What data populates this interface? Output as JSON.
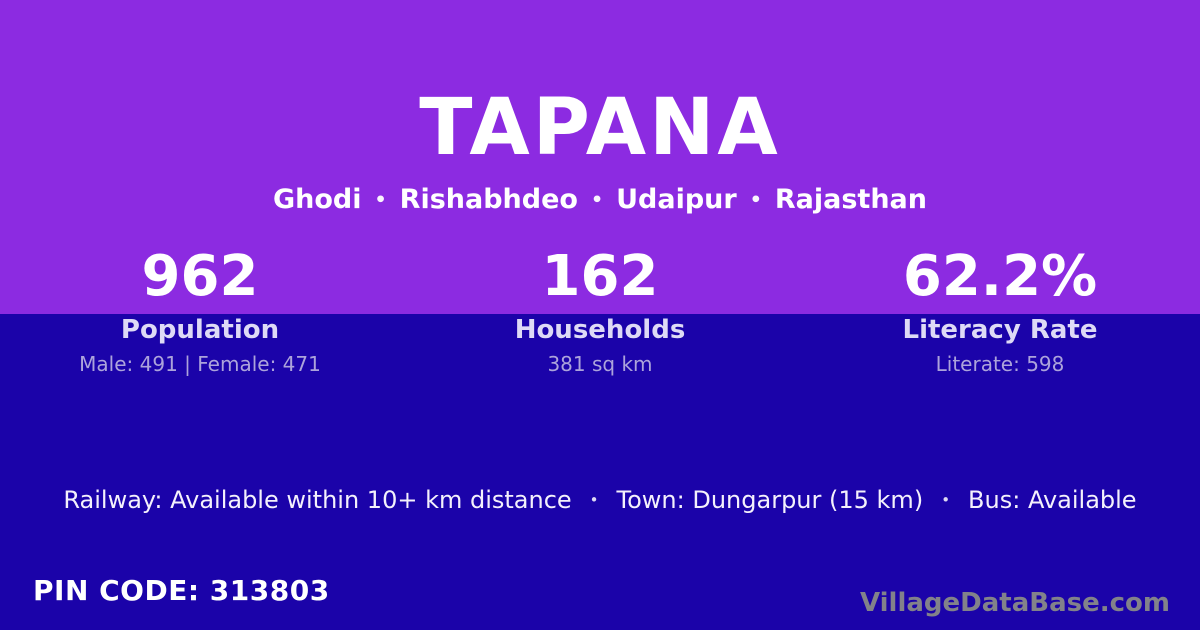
{
  "colors": {
    "purple": "#8C2BE1",
    "dark_blue": "#1B03A9",
    "white": "#FFFFFF",
    "label": "#DEDAF6",
    "detail": "#ACA3DB",
    "transport": "#F4F1FC",
    "watermark": "#82828A"
  },
  "header": {
    "title": "TAPANA",
    "location_parts": [
      "Ghodi",
      "Rishabhdeo",
      "Udaipur",
      "Rajasthan"
    ],
    "separator": "•"
  },
  "stats": [
    {
      "value": "962",
      "label": "Population",
      "detail": "Male: 491 | Female: 471"
    },
    {
      "value": "162",
      "label": "Households",
      "detail": "381 sq km"
    },
    {
      "value": "62.2%",
      "label": "Literacy Rate",
      "detail": "Literate: 598"
    }
  ],
  "transport": {
    "items": [
      "Railway: Available within 10+ km distance",
      "Town: Dungarpur (15 km)",
      "Bus: Available"
    ],
    "separator": "•"
  },
  "footer": {
    "pin_code": "PIN CODE: 313803",
    "watermark": "VillageDataBase.com"
  }
}
